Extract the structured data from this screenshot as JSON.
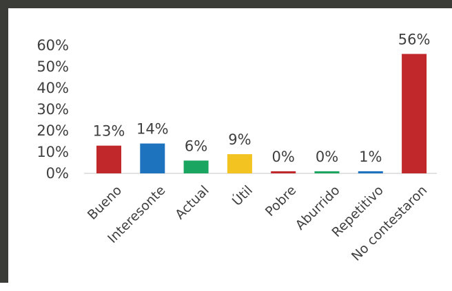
{
  "chart_data": {
    "type": "bar",
    "categories": [
      "Bueno",
      "Interesonte",
      "Actual",
      "Útil",
      "Pobre",
      "Aburrido",
      "Repetitivo",
      "No contestaron"
    ],
    "values": [
      13,
      14,
      6,
      9,
      0,
      0,
      1,
      56
    ],
    "data_labels": [
      "13%",
      "14%",
      "6%",
      "9%",
      "0%",
      "0%",
      "1%",
      "56%"
    ],
    "bar_colors": [
      "#c0282b",
      "#1e73be",
      "#1aa561",
      "#f3c321",
      "#c0282b",
      "#1aa561",
      "#1e73be",
      "#c0282b"
    ],
    "yticks": [
      "0%",
      "10%",
      "20%",
      "30%",
      "40%",
      "50%",
      "60%"
    ],
    "ylim": [
      0,
      60
    ],
    "grid": false,
    "legend": "none",
    "title": "",
    "xlabel": "",
    "ylabel": ""
  }
}
